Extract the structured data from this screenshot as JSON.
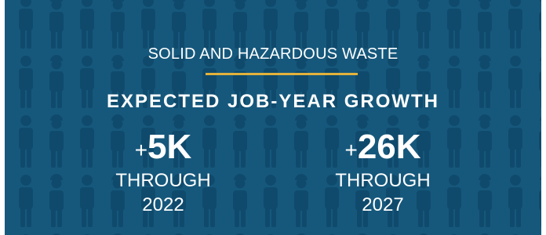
{
  "header": {
    "title": "SOLID AND HAZARDOUS WASTE",
    "subtitle": "EXPECTED JOB-YEAR GROWTH"
  },
  "stats": [
    {
      "prefix": "+",
      "value": "5K",
      "label": "THROUGH",
      "year": "2022"
    },
    {
      "prefix": "+",
      "value": "26K",
      "label": "THROUGH",
      "year": "2027"
    }
  ]
}
